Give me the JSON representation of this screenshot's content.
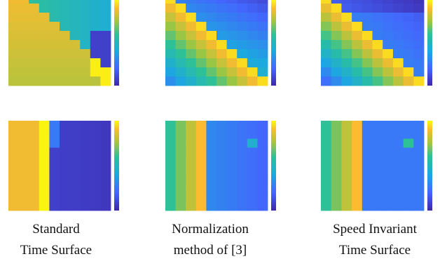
{
  "captions": [
    {
      "line1": "Standard",
      "line2": "Time Surface"
    },
    {
      "line1": "Normalization",
      "line2": "method of [3]"
    },
    {
      "line1": "Speed Invariant",
      "line2": "Time Surface"
    }
  ]
}
